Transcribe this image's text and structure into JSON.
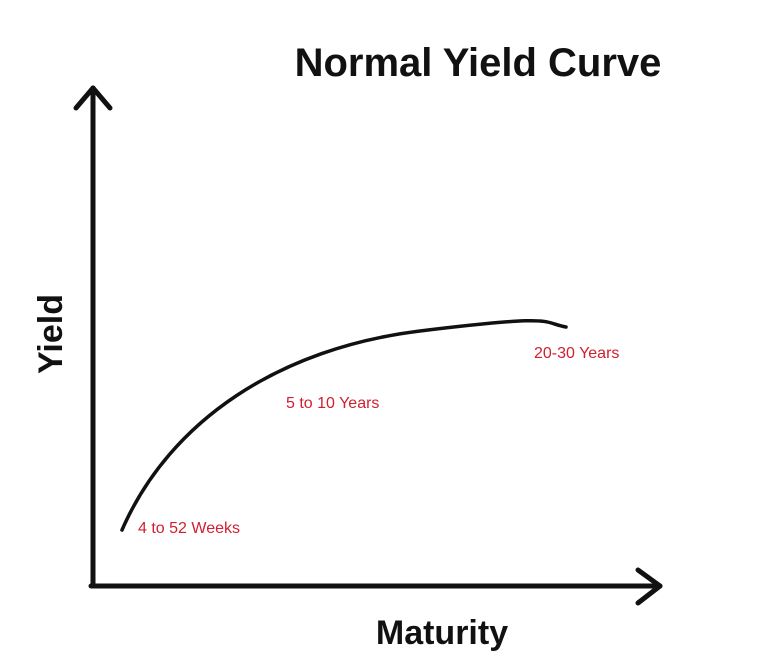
{
  "title": "Normal Yield Curve",
  "axes": {
    "x_label": "Maturity",
    "y_label": "Yield"
  },
  "annotations": [
    "4 to 52 Weeks",
    "5 to 10 Years",
    "20-30 Years"
  ]
}
